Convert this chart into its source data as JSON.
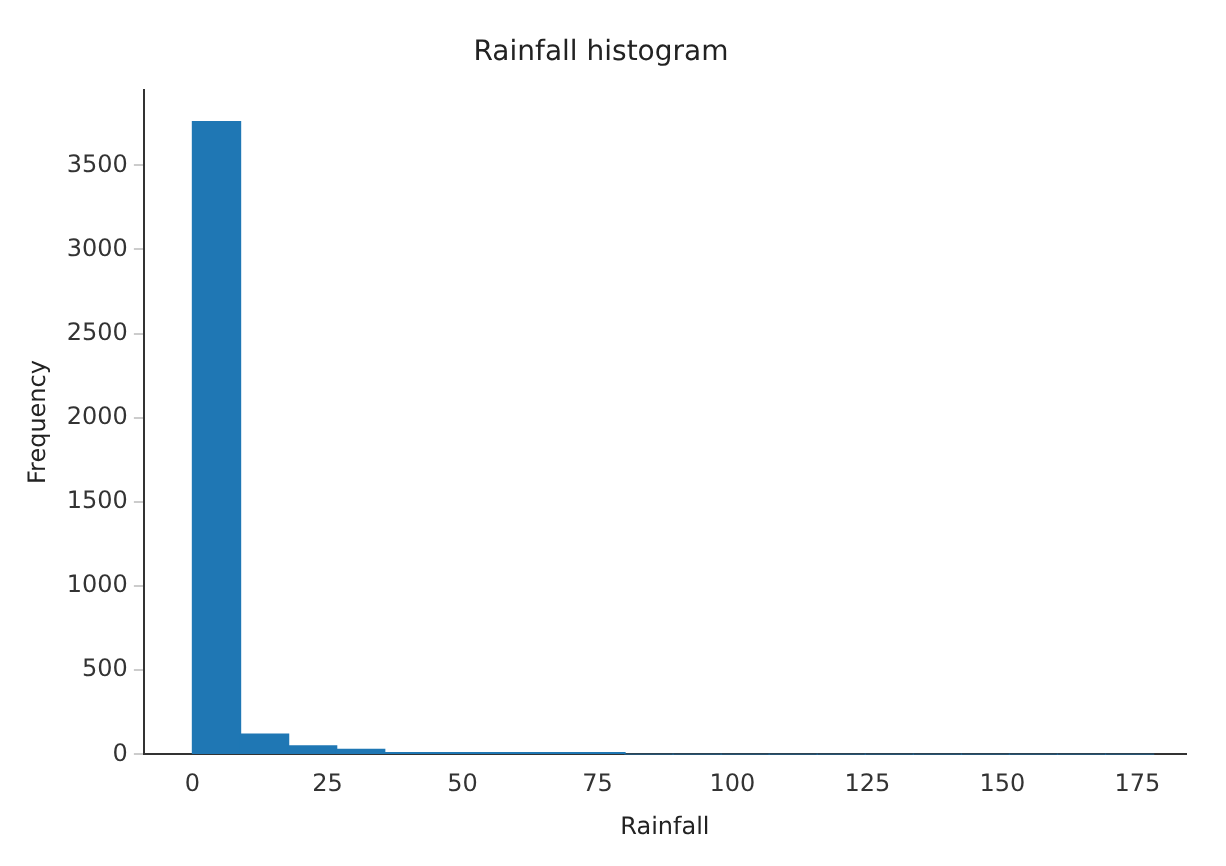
{
  "chart_data": {
    "type": "histogram",
    "title": "Rainfall histogram",
    "xlabel": "Rainfall",
    "ylabel": "Frequency",
    "color": "#1f77b4",
    "bins": [
      0,
      8.9,
      17.8,
      26.7,
      35.6,
      44.5,
      53.4,
      62.3,
      71.2,
      80.1,
      89,
      97.9,
      106.8,
      115.7,
      124.6,
      133.5,
      142.4,
      151.3,
      160.2,
      169.1,
      178
    ],
    "values": [
      3760,
      120,
      50,
      30,
      10,
      10,
      10,
      10,
      10,
      0,
      0,
      0,
      0,
      0,
      0,
      0,
      0,
      0,
      0,
      0
    ],
    "xlim": [
      -9,
      184
    ],
    "xticks": [
      0,
      25,
      50,
      75,
      100,
      125,
      150,
      175
    ],
    "ylim": [
      0,
      3950
    ],
    "yticks": [
      0,
      500,
      1000,
      1500,
      2000,
      2500,
      3000,
      3500
    ],
    "grid": false
  }
}
